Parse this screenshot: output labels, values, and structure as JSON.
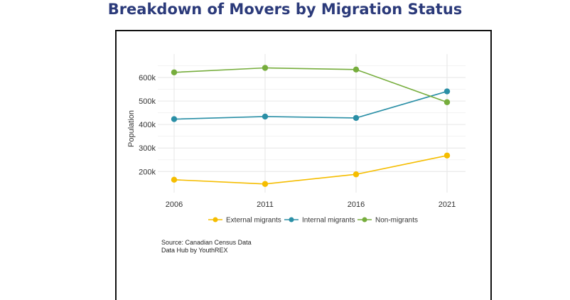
{
  "title": "Breakdown of Movers by Migration Status",
  "source": {
    "line1": "Source: Canadian Census Data",
    "line2": "Data Hub by YouthREX"
  },
  "chart_data": {
    "type": "line",
    "x": [
      "2006",
      "2011",
      "2016",
      "2021"
    ],
    "ylabel": "Population",
    "ylim": [
      110000,
      700000
    ],
    "yticks": [
      200000,
      300000,
      400000,
      500000,
      600000
    ],
    "ytick_labels": [
      "200k",
      "300k",
      "400k",
      "500k",
      "600k"
    ],
    "grid": true,
    "legend_position": "bottom",
    "series": [
      {
        "name": "External migrants",
        "color": "#f5bd00",
        "values": [
          165000,
          147000,
          188000,
          268000
        ]
      },
      {
        "name": "Internal migrants",
        "color": "#2a8fa6",
        "values": [
          423000,
          434000,
          428000,
          541000
        ]
      },
      {
        "name": "Non-migrants",
        "color": "#76ad3c",
        "values": [
          622000,
          641000,
          634000,
          495000
        ]
      }
    ]
  }
}
